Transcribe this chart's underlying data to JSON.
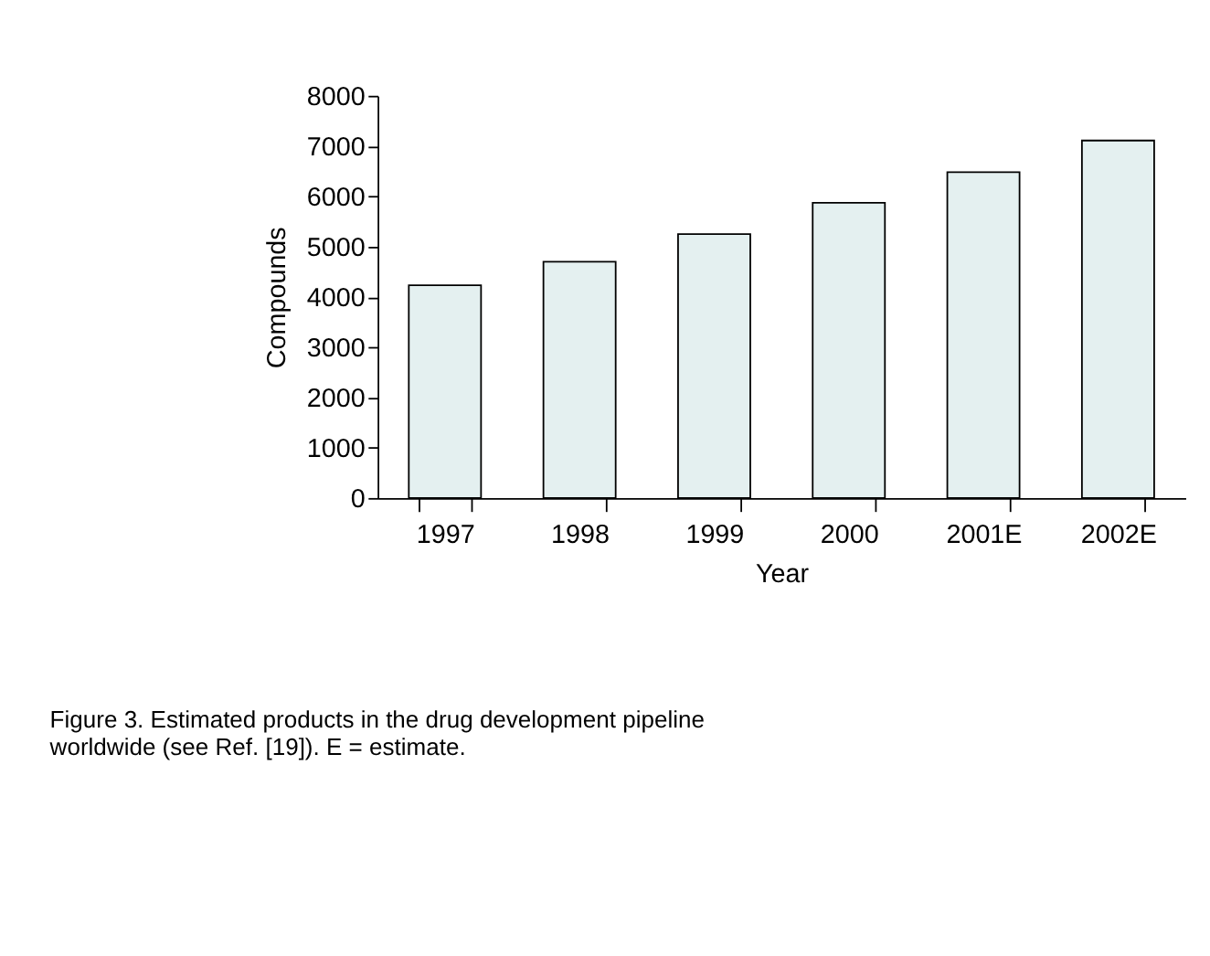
{
  "chart_data": {
    "type": "bar",
    "xlabel": "Year",
    "ylabel": "Compounds",
    "categories": [
      "1997",
      "1998",
      "1999",
      "2000",
      "2001E",
      "2002E"
    ],
    "values": [
      4230,
      4700,
      5250,
      5870,
      6480,
      7110
    ],
    "color": "#e4f0f0",
    "ylim": [
      0,
      8000
    ],
    "yticks": [
      0,
      1000,
      2000,
      3000,
      4000,
      5000,
      6000,
      7000,
      8000
    ],
    "grid": false,
    "annotations": [
      "Figure 3. Estimated products in the drug development pipeline worldwide (see Ref. [19]). E = estimate."
    ]
  }
}
